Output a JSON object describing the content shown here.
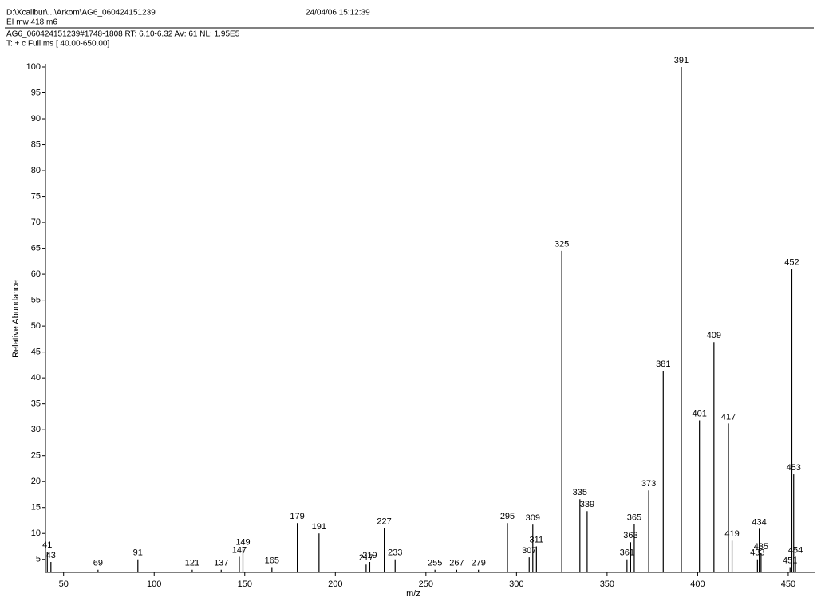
{
  "header": {
    "path": "D:\\Xcalibur\\...\\Arkom\\AG6_060424151239",
    "datetime": "24/04/06 15:12:39",
    "sample": "EI  mw 418  m6",
    "scan": "AG6_060424151239#1748-1808  RT: 6.10-6.32  AV: 61  NL: 1.95E5",
    "filter": "T: + c Full ms [ 40.00-650.00]"
  },
  "chart_data": {
    "type": "bar",
    "x_label": "m/z",
    "y_label": "Relative Abundance",
    "color": "#000000",
    "x": [
      41,
      43,
      69,
      91,
      121,
      137,
      147,
      149,
      165,
      179,
      191,
      217,
      219,
      227,
      233,
      255,
      267,
      279,
      295,
      307,
      309,
      311,
      325,
      335,
      339,
      361,
      363,
      365,
      373,
      381,
      391,
      401,
      409,
      417,
      419,
      433,
      434,
      435,
      451,
      452,
      453,
      454
    ],
    "values": [
      6.5,
      4.5,
      3,
      5,
      3,
      3,
      5.5,
      7,
      3.5,
      12,
      10,
      4,
      4.5,
      11,
      5,
      3,
      3,
      3,
      12,
      5.4,
      11.7,
      7.5,
      64.5,
      16.6,
      14.3,
      5,
      8.3,
      11.8,
      18.3,
      41.4,
      100,
      31.8,
      46.9,
      31.2,
      8.6,
      5,
      10.9,
      6.2,
      3.5,
      61,
      21.4,
      5.5
    ],
    "xlim": [
      40,
      465
    ],
    "ylim": [
      2.5,
      100
    ],
    "xticks": [
      50,
      100,
      150,
      200,
      250,
      300,
      350,
      400,
      450
    ],
    "yticks": [
      5,
      10,
      15,
      20,
      25,
      30,
      35,
      40,
      45,
      50,
      55,
      60,
      65,
      70,
      75,
      80,
      85,
      90,
      95,
      100
    ]
  }
}
